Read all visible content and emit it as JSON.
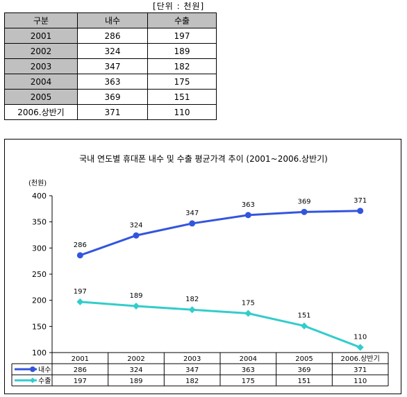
{
  "unit_label": "[단위 : 천원]",
  "table": {
    "headers": [
      "구분",
      "내수",
      "수출"
    ],
    "rows": [
      [
        "2001",
        "286",
        "197"
      ],
      [
        "2002",
        "324",
        "189"
      ],
      [
        "2003",
        "347",
        "182"
      ],
      [
        "2004",
        "363",
        "175"
      ],
      [
        "2005",
        "369",
        "151"
      ],
      [
        "2006.상반기",
        "371",
        "110"
      ]
    ]
  },
  "chart_data": {
    "type": "line",
    "title": "국내 연도별 휴대폰 내수 및 수출 평균가격 추이 (2001~2006.상반기)",
    "ylabel": "(천원)",
    "xlabel": "",
    "categories": [
      "2001",
      "2002",
      "2003",
      "2004",
      "2005",
      "2006.상반기"
    ],
    "ylim": [
      100,
      400
    ],
    "yticks": [
      100,
      150,
      200,
      250,
      300,
      350,
      400
    ],
    "grid": false,
    "series": [
      {
        "name": "내수",
        "values": [
          286,
          324,
          347,
          363,
          369,
          371
        ],
        "color": "#3355dd",
        "marker": "circle"
      },
      {
        "name": "수출",
        "values": [
          197,
          189,
          182,
          175,
          151,
          110
        ],
        "color": "#33cccc",
        "marker": "diamond"
      }
    ],
    "data_table": true
  }
}
